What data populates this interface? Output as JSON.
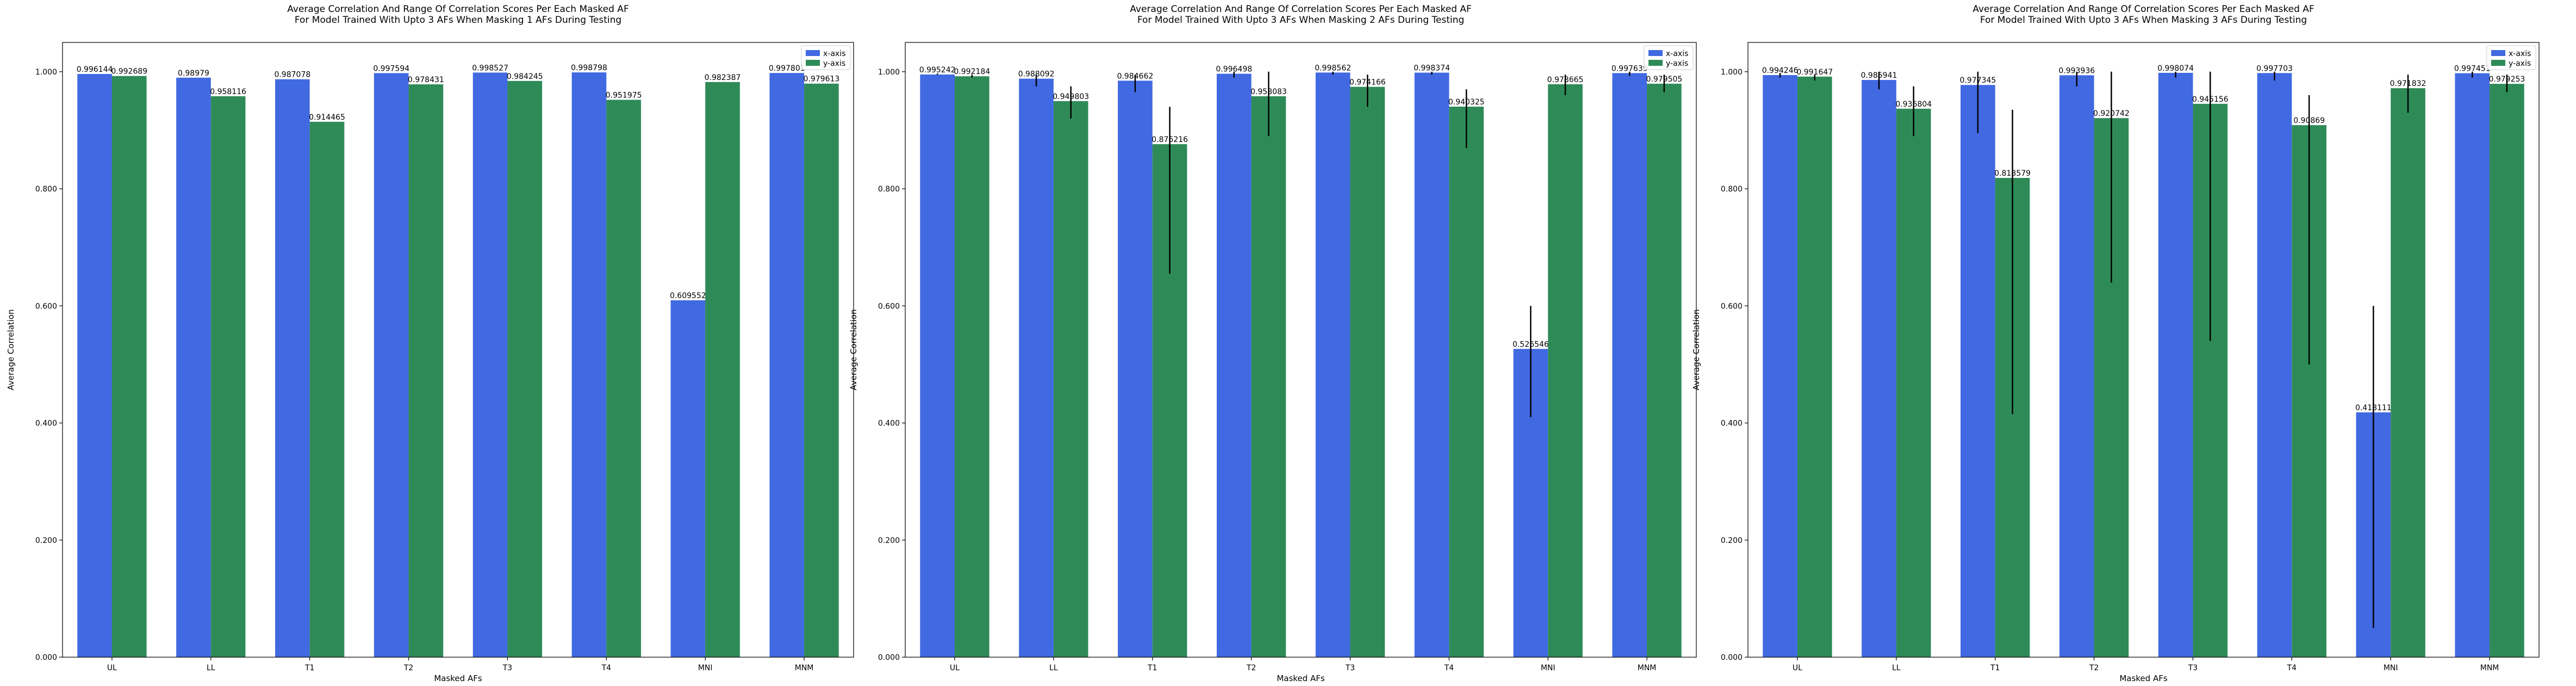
{
  "figure": {
    "background": "#ffffff"
  },
  "colors": {
    "x_axis": "#4169E1",
    "y_axis": "#2E8B57",
    "errorbar": "#000000"
  },
  "chart_data": [
    {
      "type": "bar",
      "title": "Average Correlation And Range Of Correlation Scores Per Each Masked AF\nFor Model Trained With Upto 3 AFs When Masking 1 AFs During Testing",
      "xlabel": "Masked AFs",
      "ylabel": "Average Correlation",
      "ylim": [
        0,
        1.05
      ],
      "yticks": [
        "0.000",
        "0.200",
        "0.400",
        "0.600",
        "0.800",
        "1.000"
      ],
      "categories": [
        "UL",
        "LL",
        "T1",
        "T2",
        "T3",
        "T4",
        "MNI",
        "MNM"
      ],
      "legend": "top-right",
      "series": [
        {
          "name": "x-axis",
          "color": "#4169E1",
          "values": [
            0.996144,
            0.98979,
            0.987078,
            0.997594,
            0.998527,
            0.998798,
            0.609552,
            0.997801
          ],
          "labels": [
            "0.996144",
            "0.98979",
            "0.987078",
            "0.997594",
            "0.998527",
            "0.998798",
            "0.609552",
            "0.997801"
          ],
          "error_low": [
            0.996144,
            0.98979,
            0.987078,
            0.997594,
            0.998527,
            0.998798,
            0.609552,
            0.997801
          ],
          "error_high": [
            0.996144,
            0.98979,
            0.987078,
            0.997594,
            0.998527,
            0.998798,
            0.609552,
            0.997801
          ]
        },
        {
          "name": "y-axis",
          "color": "#2E8B57",
          "values": [
            0.992689,
            0.958116,
            0.914465,
            0.978431,
            0.984245,
            0.951975,
            0.982387,
            0.979613
          ],
          "labels": [
            "0.992689",
            "0.958116",
            "0.914465",
            "0.978431",
            "0.984245",
            "0.951975",
            "0.982387",
            "0.979613"
          ],
          "error_low": [
            0.992689,
            0.958116,
            0.914465,
            0.978431,
            0.984245,
            0.951975,
            0.982387,
            0.979613
          ],
          "error_high": [
            0.992689,
            0.958116,
            0.914465,
            0.978431,
            0.984245,
            0.951975,
            0.982387,
            0.979613
          ]
        }
      ]
    },
    {
      "type": "bar",
      "title": "Average Correlation And Range Of Correlation Scores Per Each Masked AF\nFor Model Trained With Upto 3 AFs When Masking 2 AFs During Testing",
      "xlabel": "Masked AFs",
      "ylabel": "Average Correlation",
      "ylim": [
        0,
        1.05
      ],
      "yticks": [
        "0.000",
        "0.200",
        "0.400",
        "0.600",
        "0.800",
        "1.000"
      ],
      "categories": [
        "UL",
        "LL",
        "T1",
        "T2",
        "T3",
        "T4",
        "MNI",
        "MNM"
      ],
      "legend": "top-right",
      "series": [
        {
          "name": "x-axis",
          "color": "#4169E1",
          "values": [
            0.995242,
            0.988092,
            0.984662,
            0.996498,
            0.998562,
            0.998374,
            0.526546,
            0.997639
          ],
          "labels": [
            "0.995242",
            "0.988092",
            "0.984662",
            "0.996498",
            "0.998562",
            "0.998374",
            "0.526546",
            "0.997639"
          ],
          "error_low": [
            0.995,
            0.975,
            0.965,
            0.99,
            0.995,
            0.995,
            0.41,
            0.993
          ],
          "error_high": [
            0.997,
            0.995,
            0.995,
            1.0,
            1.0,
            1.0,
            0.6,
            1.0
          ]
        },
        {
          "name": "y-axis",
          "color": "#2E8B57",
          "values": [
            0.992184,
            0.949803,
            0.876216,
            0.958083,
            0.974166,
            0.940325,
            0.978665,
            0.979505
          ],
          "labels": [
            "0.992184",
            "0.949803",
            "0.876216",
            "0.958083",
            "0.974166",
            "0.940325",
            "0.978665",
            "0.979505"
          ],
          "error_low": [
            0.99,
            0.92,
            0.655,
            0.89,
            0.94,
            0.87,
            0.96,
            0.965
          ],
          "error_high": [
            0.995,
            0.975,
            0.94,
            1.0,
            0.995,
            0.97,
            0.995,
            0.995
          ]
        }
      ]
    },
    {
      "type": "bar",
      "title": "Average Correlation And Range Of Correlation Scores Per Each Masked AF\nFor Model Trained With Upto 3 AFs When Masking 3 AFs During Testing",
      "xlabel": "Masked AFs",
      "ylabel": "Average Correlation",
      "ylim": [
        0,
        1.05
      ],
      "yticks": [
        "0.000",
        "0.200",
        "0.400",
        "0.600",
        "0.800",
        "1.000"
      ],
      "categories": [
        "UL",
        "LL",
        "T1",
        "T2",
        "T3",
        "T4",
        "MNI",
        "MNM"
      ],
      "legend": "top-right",
      "series": [
        {
          "name": "x-axis",
          "color": "#4169E1",
          "values": [
            0.994246,
            0.985941,
            0.977345,
            0.993936,
            0.998074,
            0.997703,
            0.418111,
            0.997451
          ],
          "labels": [
            "0.994246",
            "0.985941",
            "0.977345",
            "0.993936",
            "0.998074",
            "0.997703",
            "0.418111",
            "0.997451"
          ],
          "error_low": [
            0.99,
            0.97,
            0.895,
            0.975,
            0.99,
            0.985,
            0.05,
            0.99
          ],
          "error_high": [
            0.998,
            1.0,
            1.0,
            1.0,
            1.0,
            1.0,
            0.6,
            1.0
          ]
        },
        {
          "name": "y-axis",
          "color": "#2E8B57",
          "values": [
            0.991647,
            0.936804,
            0.818579,
            0.920742,
            0.945156,
            0.90869,
            0.971832,
            0.979253
          ],
          "labels": [
            "0.991647",
            "0.936804",
            "0.818579",
            "0.920742",
            "0.945156",
            "0.90869",
            "0.971832",
            "0.979253"
          ],
          "error_low": [
            0.985,
            0.89,
            0.415,
            0.64,
            0.54,
            0.5,
            0.93,
            0.965
          ],
          "error_high": [
            0.995,
            0.975,
            0.935,
            1.0,
            1.0,
            0.96,
            0.995,
            0.995
          ]
        }
      ]
    }
  ]
}
